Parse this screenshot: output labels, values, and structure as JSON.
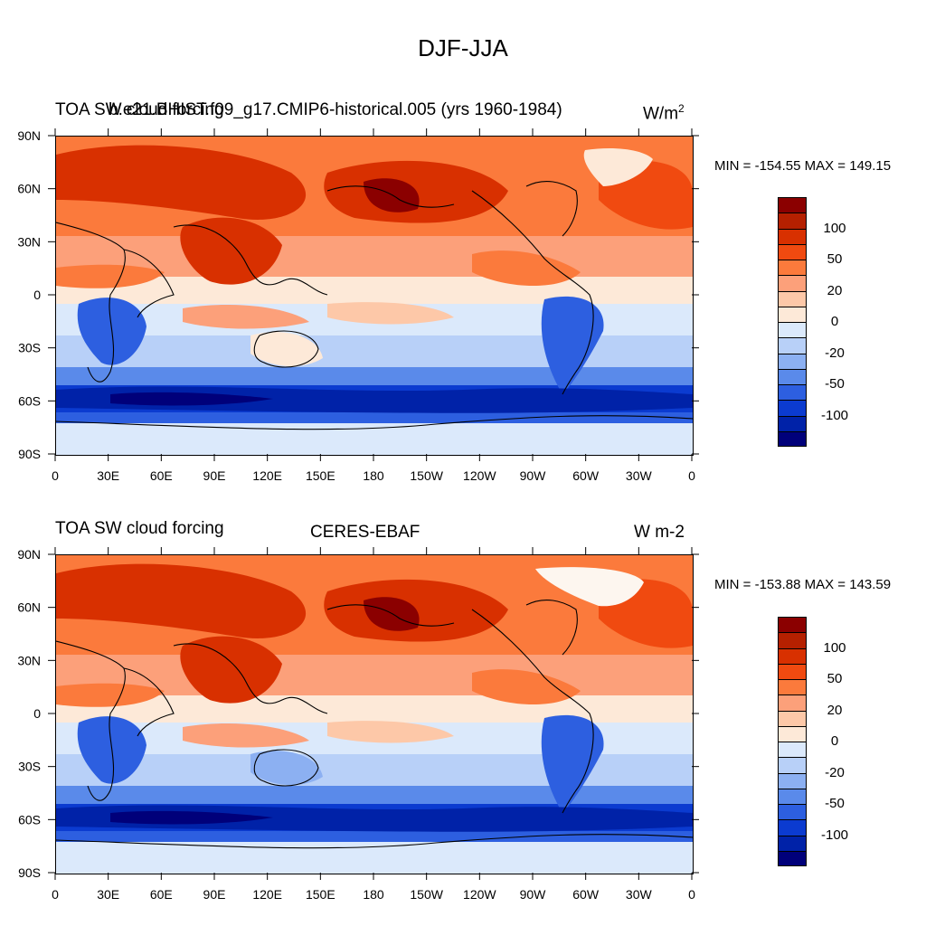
{
  "title": "DJF-JJA",
  "panels": [
    {
      "left_title": "TOA SW cloud forcing",
      "center_title": "b.e21.BHIST.f09_g17.CMIP6-historical.005 (yrs 1960-1984)",
      "units_prefix": "W/m",
      "units_sup": "2",
      "stats": "MIN = -154.55 MAX = 149.15"
    },
    {
      "left_title": "TOA SW cloud forcing",
      "center_title": "CERES-EBAF",
      "units_prefix": "W m-2",
      "units_sup": "",
      "stats": "MIN = -153.88 MAX = 143.59"
    }
  ],
  "colorbar": {
    "colors_top_to_bottom": [
      "#8b0000",
      "#b52000",
      "#d83000",
      "#f04a10",
      "#fb7a3c",
      "#fca07a",
      "#fdc8a8",
      "#fde9d8",
      "#dbe9fb",
      "#b8d0f8",
      "#8cb0f2",
      "#5a8aea",
      "#2d5fe0",
      "#0b3bd0",
      "#0022a8",
      "#00007a"
    ],
    "labels": [
      "100",
      "50",
      "20",
      "0",
      "-20",
      "-50",
      "-100"
    ]
  },
  "axes": {
    "x_ticks": [
      "0",
      "30E",
      "60E",
      "90E",
      "120E",
      "150E",
      "180",
      "150W",
      "120W",
      "90W",
      "60W",
      "30W",
      "0"
    ],
    "y_ticks": [
      "90N",
      "60N",
      "30N",
      "0",
      "30S",
      "60S",
      "90S"
    ]
  },
  "palette": {
    "ocean_neutral": "#dbe9fb",
    "strong_positive": "#d83000",
    "strong_negative": "#0022a8"
  }
}
